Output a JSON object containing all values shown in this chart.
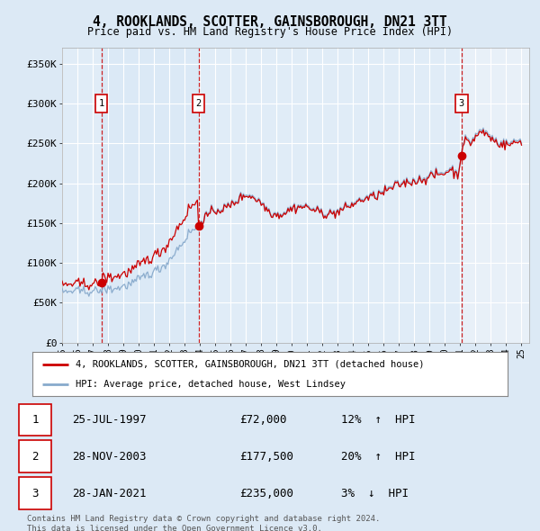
{
  "title": "4, ROOKLANDS, SCOTTER, GAINSBOROUGH, DN21 3TT",
  "subtitle": "Price paid vs. HM Land Registry's House Price Index (HPI)",
  "ylabel_ticks": [
    "£0",
    "£50K",
    "£100K",
    "£150K",
    "£200K",
    "£250K",
    "£300K",
    "£350K"
  ],
  "ytick_values": [
    0,
    50000,
    100000,
    150000,
    200000,
    250000,
    300000,
    350000
  ],
  "ylim": [
    0,
    370000
  ],
  "xlim_start": 1995.0,
  "xlim_end": 2025.5,
  "sales": [
    {
      "num": 1,
      "date_str": "25-JUL-1997",
      "date_x": 1997.56,
      "price": 72000,
      "pct": "12%",
      "dir": "↑"
    },
    {
      "num": 2,
      "date_str": "28-NOV-2003",
      "date_x": 2003.91,
      "price": 177500,
      "pct": "20%",
      "dir": "↑"
    },
    {
      "num": 3,
      "date_str": "28-JAN-2021",
      "date_x": 2021.08,
      "price": 235000,
      "pct": "3%",
      "dir": "↓"
    }
  ],
  "legend_label_red": "4, ROOKLANDS, SCOTTER, GAINSBOROUGH, DN21 3TT (detached house)",
  "legend_label_blue": "HPI: Average price, detached house, West Lindsey",
  "footer": "Contains HM Land Registry data © Crown copyright and database right 2024.\nThis data is licensed under the Open Government Licence v3.0.",
  "red_color": "#cc0000",
  "blue_color": "#88aacc",
  "shade_color": "#d0e4f5",
  "background_color": "#dce9f5",
  "plot_bg": "#e8f0f8",
  "grid_color": "#ffffff",
  "num_box_color": "#cc0000",
  "marker_circle_color": "#cc0000"
}
